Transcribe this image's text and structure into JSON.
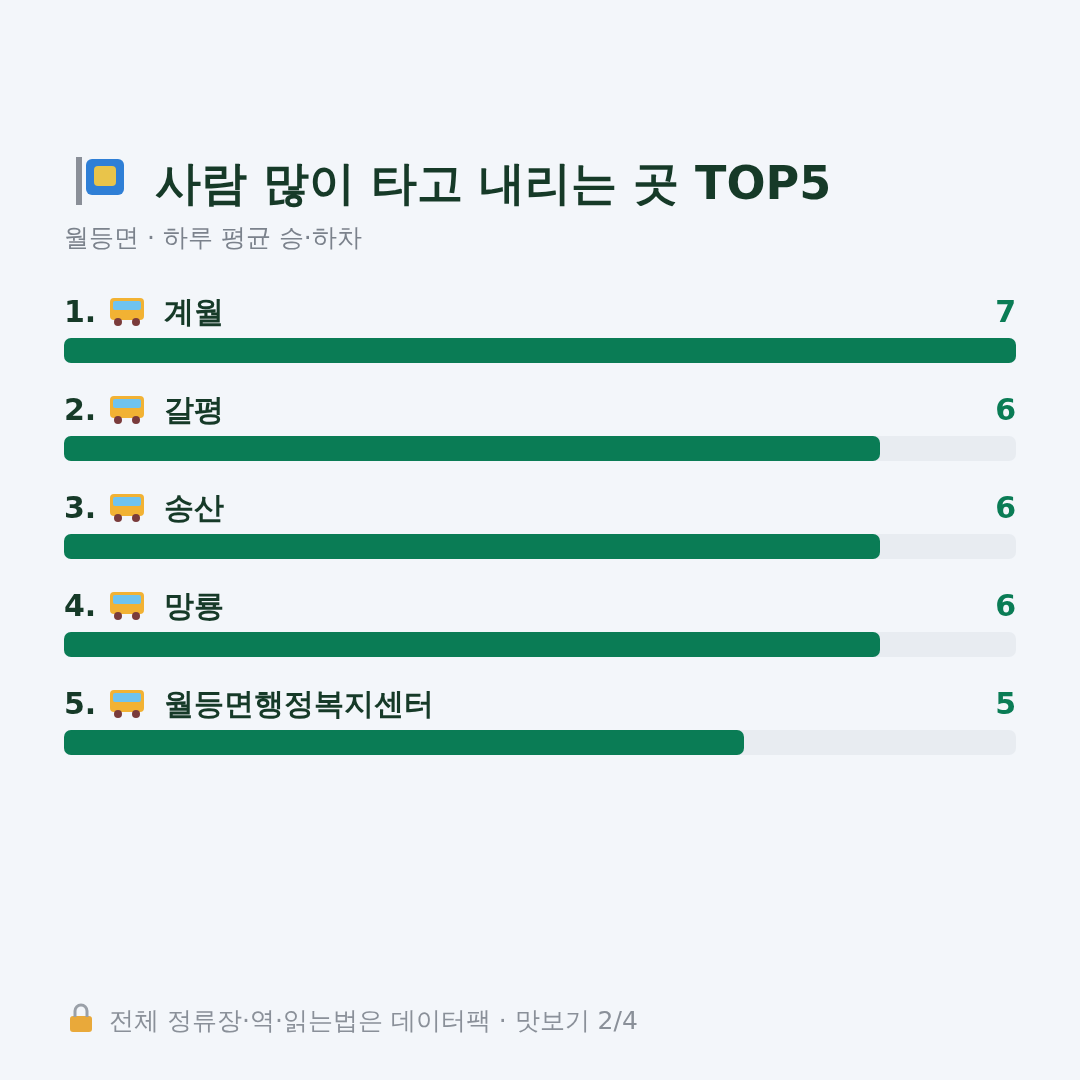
{
  "chart_data": {
    "type": "bar",
    "orientation": "horizontal",
    "title": "사람 많이 타고 내리는 곳 TOP5",
    "subtitle": "월등면 · 하루 평균 승·하차",
    "categories": [
      "1. 계월",
      "2. 갈평",
      "3. 송산",
      "4. 망룡",
      "5. 월등면행정복지센터"
    ],
    "values": [
      7,
      6,
      6,
      6,
      5
    ],
    "color": "#0a7c55",
    "xlim": [
      0,
      7
    ],
    "data_labels": true,
    "annotations": [
      "전체 정류장·역·읽는법은 데이터팩 · 맛보기 2/4"
    ]
  }
}
